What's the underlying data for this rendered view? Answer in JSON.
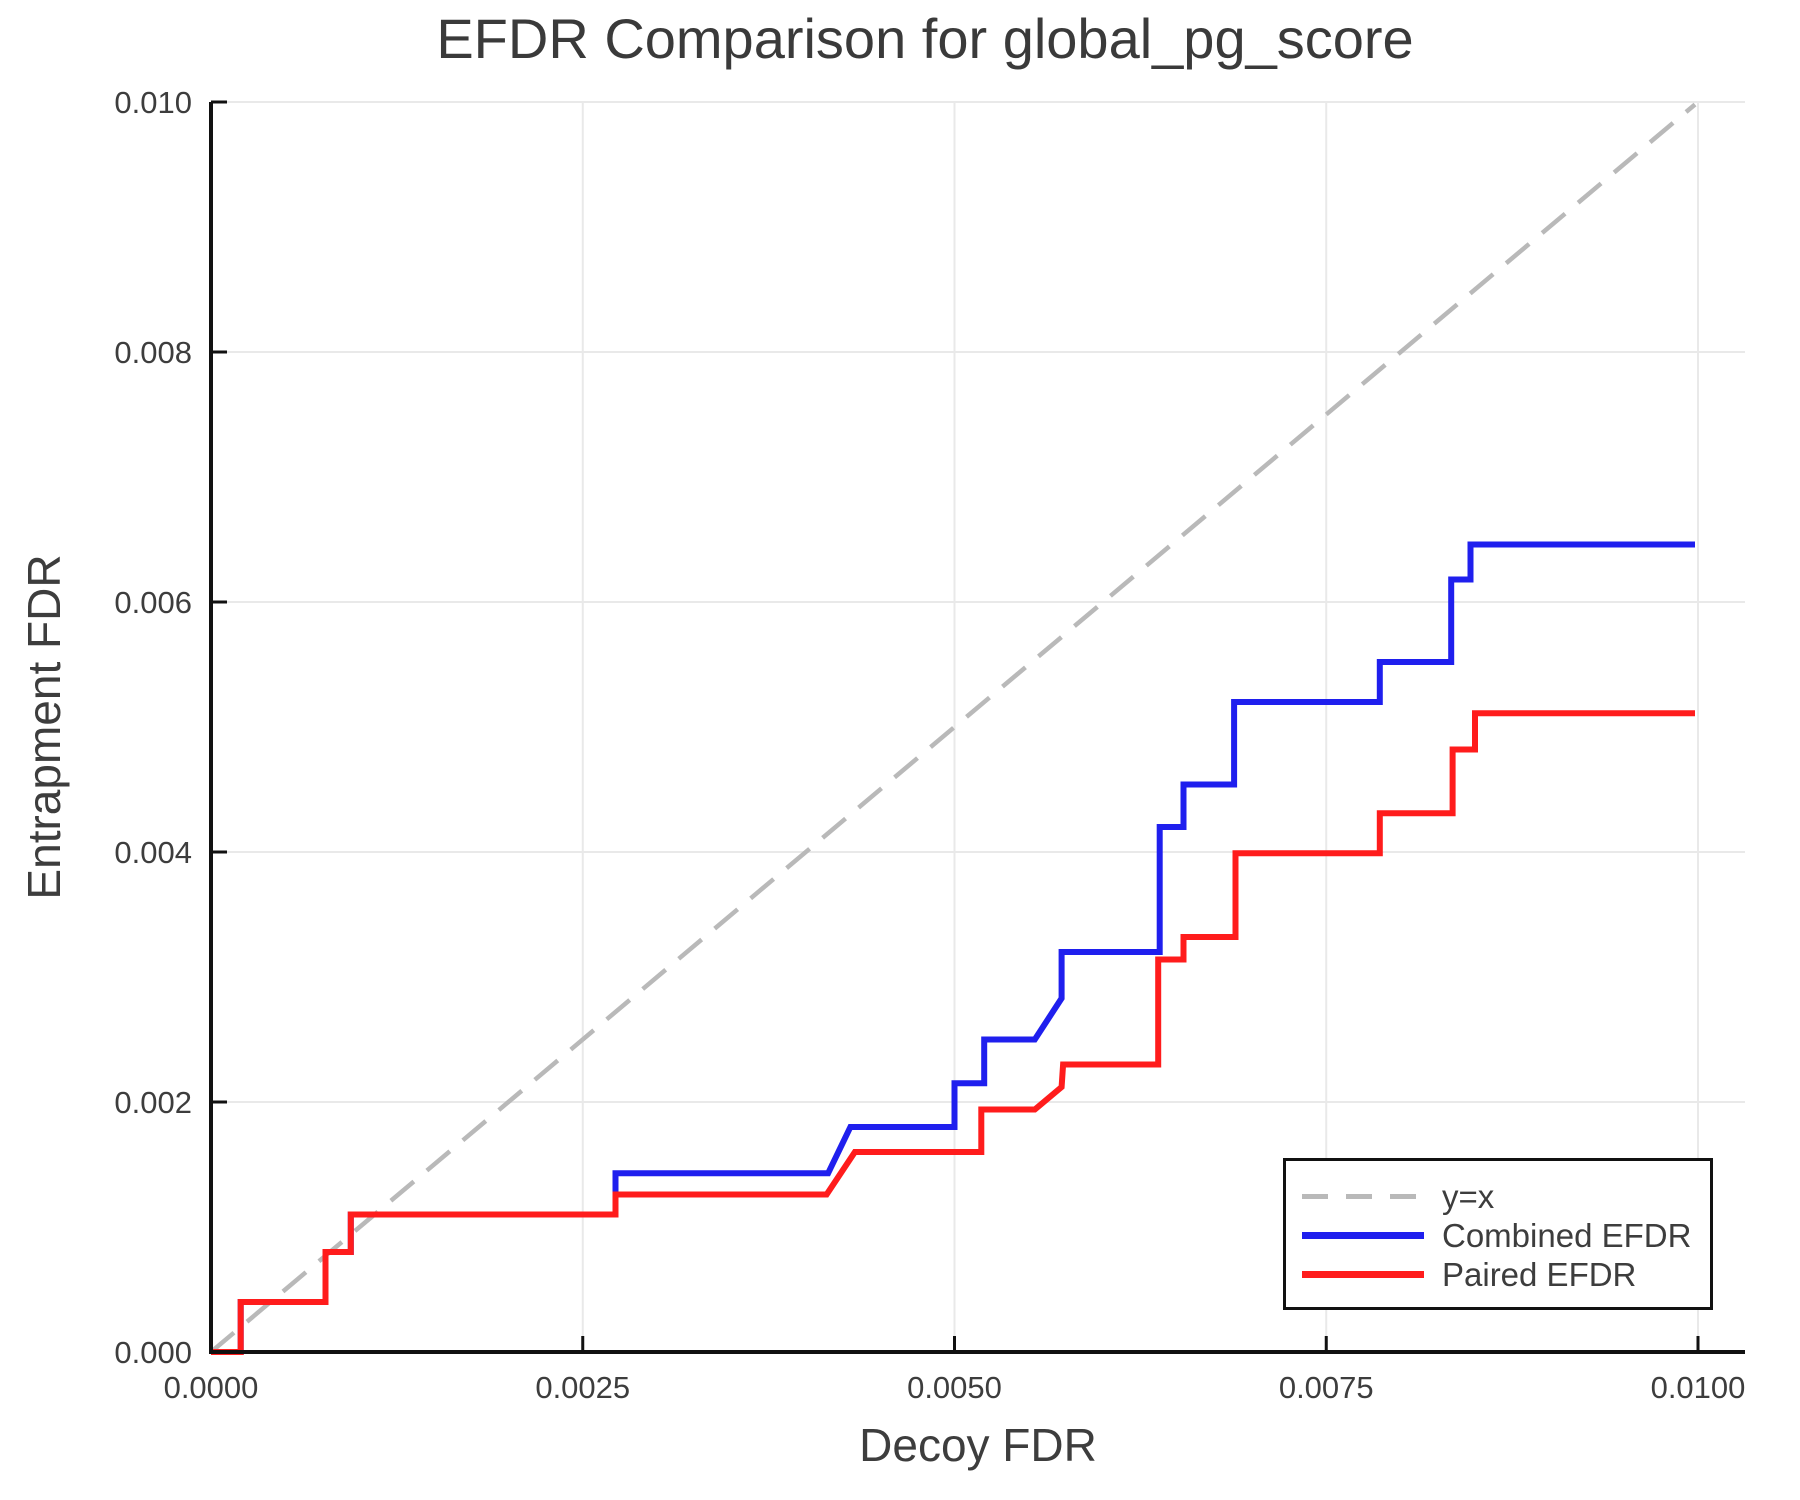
{
  "chart_data": {
    "type": "line",
    "title": "EFDR Comparison for global_pg_score",
    "xlabel": "Decoy FDR",
    "ylabel": "Entrapment FDR",
    "xlim": [
      0.0,
      0.01
    ],
    "ylim": [
      0.0,
      0.01
    ],
    "grid": true,
    "legend_position": "lower right",
    "xticks": {
      "values": [
        0.0,
        0.0025,
        0.005,
        0.0075,
        0.01
      ],
      "labels": [
        "0.0000",
        "0.0025",
        "0.0050",
        "0.0075",
        "0.0100"
      ]
    },
    "yticks": {
      "values": [
        0.0,
        0.002,
        0.004,
        0.006,
        0.008,
        0.01
      ],
      "labels": [
        "0.000",
        "0.002",
        "0.004",
        "0.006",
        "0.008",
        "0.010"
      ]
    },
    "colors": {
      "grid": "#e9e9e9",
      "axis": "#111111",
      "text": "#3d3d3d",
      "reference": "#b9b9b9",
      "combined": "#1f1fee",
      "paired": "#ff1c1c"
    },
    "series": [
      {
        "name": "y=x",
        "style": "dashed",
        "color": "#b9b9b9",
        "width": 4.5,
        "points": [
          [
            0.0,
            0.0
          ],
          [
            0.00998,
            0.00998
          ]
        ]
      },
      {
        "name": "Combined EFDR",
        "style": "solid",
        "color": "#1f1fee",
        "width": 6,
        "points": [
          [
            0.0,
            0.0
          ],
          [
            0.0002,
            0.0
          ],
          [
            0.0002,
            0.0004
          ],
          [
            0.00077,
            0.0004
          ],
          [
            0.00077,
            0.0008
          ],
          [
            0.00094,
            0.0008
          ],
          [
            0.00094,
            0.0011
          ],
          [
            0.00272,
            0.0011
          ],
          [
            0.00272,
            0.00143
          ],
          [
            0.00415,
            0.00143
          ],
          [
            0.0043,
            0.0018
          ],
          [
            0.005,
            0.0018
          ],
          [
            0.005,
            0.00215
          ],
          [
            0.0052,
            0.00215
          ],
          [
            0.0052,
            0.0025
          ],
          [
            0.00554,
            0.0025
          ],
          [
            0.00572,
            0.00283
          ],
          [
            0.00572,
            0.0032
          ],
          [
            0.00638,
            0.0032
          ],
          [
            0.00638,
            0.0042
          ],
          [
            0.00654,
            0.0042
          ],
          [
            0.00654,
            0.00454
          ],
          [
            0.00688,
            0.00454
          ],
          [
            0.00688,
            0.0052
          ],
          [
            0.00786,
            0.0052
          ],
          [
            0.00786,
            0.00552
          ],
          [
            0.00834,
            0.00552
          ],
          [
            0.00834,
            0.00618
          ],
          [
            0.00847,
            0.00618
          ],
          [
            0.00847,
            0.00646
          ],
          [
            0.00998,
            0.00646
          ]
        ]
      },
      {
        "name": "Paired EFDR",
        "style": "solid",
        "color": "#ff1c1c",
        "width": 6,
        "points": [
          [
            0.0,
            0.0
          ],
          [
            0.0002,
            0.0
          ],
          [
            0.0002,
            0.0004
          ],
          [
            0.00077,
            0.0004
          ],
          [
            0.00077,
            0.0008
          ],
          [
            0.00094,
            0.0008
          ],
          [
            0.00094,
            0.0011
          ],
          [
            0.00272,
            0.0011
          ],
          [
            0.00272,
            0.00126
          ],
          [
            0.00414,
            0.00126
          ],
          [
            0.00433,
            0.0016
          ],
          [
            0.00518,
            0.0016
          ],
          [
            0.00518,
            0.00194
          ],
          [
            0.00554,
            0.00194
          ],
          [
            0.00572,
            0.00212
          ],
          [
            0.00573,
            0.0023
          ],
          [
            0.00637,
            0.0023
          ],
          [
            0.00637,
            0.00314
          ],
          [
            0.00654,
            0.00314
          ],
          [
            0.00654,
            0.00332
          ],
          [
            0.00689,
            0.00332
          ],
          [
            0.00689,
            0.00399
          ],
          [
            0.00786,
            0.00399
          ],
          [
            0.00786,
            0.00431
          ],
          [
            0.00835,
            0.00431
          ],
          [
            0.00835,
            0.00482
          ],
          [
            0.0085,
            0.00482
          ],
          [
            0.0085,
            0.00511
          ],
          [
            0.00998,
            0.00511
          ]
        ]
      }
    ]
  }
}
